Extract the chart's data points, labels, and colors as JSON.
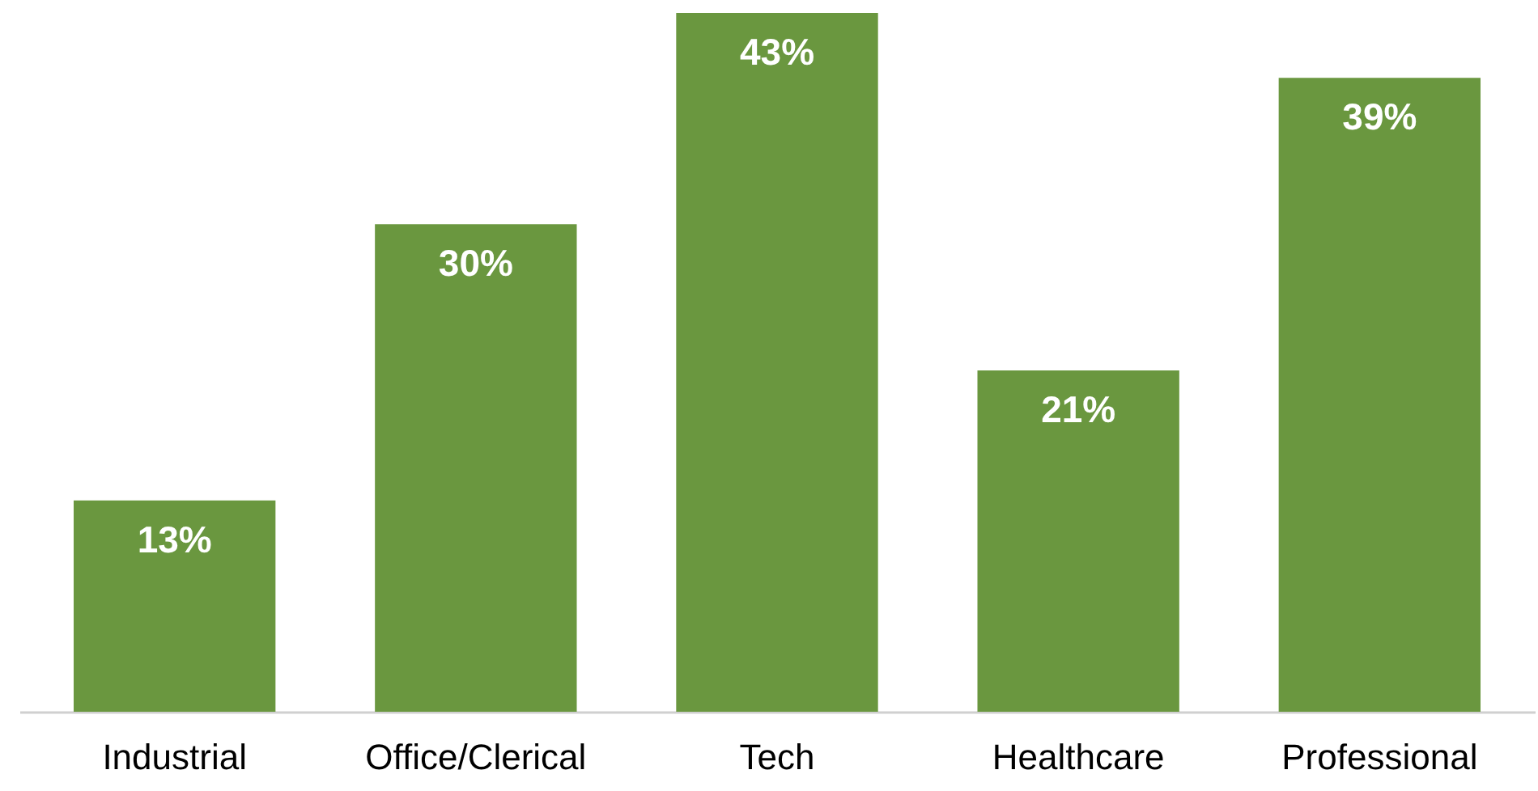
{
  "chart_data": {
    "type": "bar",
    "relative": false,
    "categories": [
      "Industrial",
      "Office/Clerical",
      "Tech",
      "Healthcare",
      "Professional"
    ],
    "values": [
      13,
      30,
      43,
      21,
      39
    ],
    "value_labels": [
      "13%",
      "30%",
      "43%",
      "21%",
      "39%"
    ],
    "color": "#6a973f"
  }
}
